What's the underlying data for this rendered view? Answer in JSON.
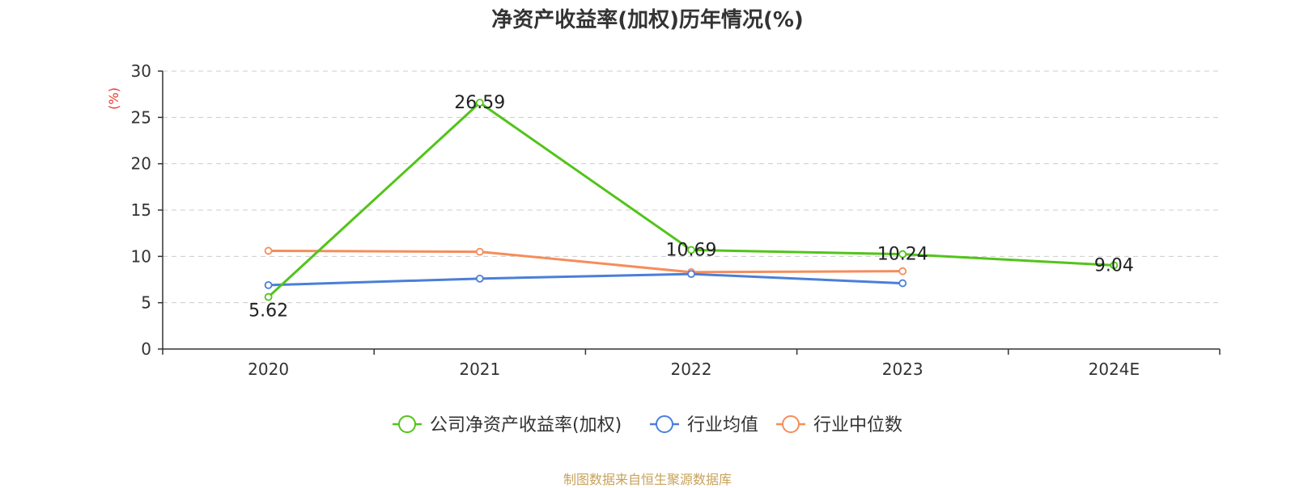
{
  "source_note": "制图数据来自恒生聚源数据库",
  "colors": {
    "axis": "#333333",
    "grid": "#cccccc",
    "unit": "#e8382c"
  },
  "chart_data": {
    "type": "line",
    "title": "净资产收益率(加权)历年情况(%)",
    "ylabel": "(%)",
    "xlabel": "",
    "categories": [
      "2020",
      "2021",
      "2022",
      "2023",
      "2024E"
    ],
    "ylim": [
      0,
      30
    ],
    "yticks": [
      0,
      5,
      10,
      15,
      20,
      25,
      30
    ],
    "grid": true,
    "legend_position": "bottom",
    "series": [
      {
        "name": "公司净资产收益率(加权)",
        "color": "#52c41a",
        "values": [
          5.62,
          26.59,
          10.69,
          10.24,
          9.04
        ],
        "data_labels": [
          "5.62",
          "26.59",
          "10.69",
          "10.24",
          "9.04"
        ]
      },
      {
        "name": "行业均值",
        "color": "#4a7fd9",
        "values": [
          6.9,
          7.6,
          8.1,
          7.1,
          null
        ]
      },
      {
        "name": "行业中位数",
        "color": "#f58d5b",
        "values": [
          10.6,
          10.5,
          8.3,
          8.4,
          null
        ]
      }
    ]
  }
}
